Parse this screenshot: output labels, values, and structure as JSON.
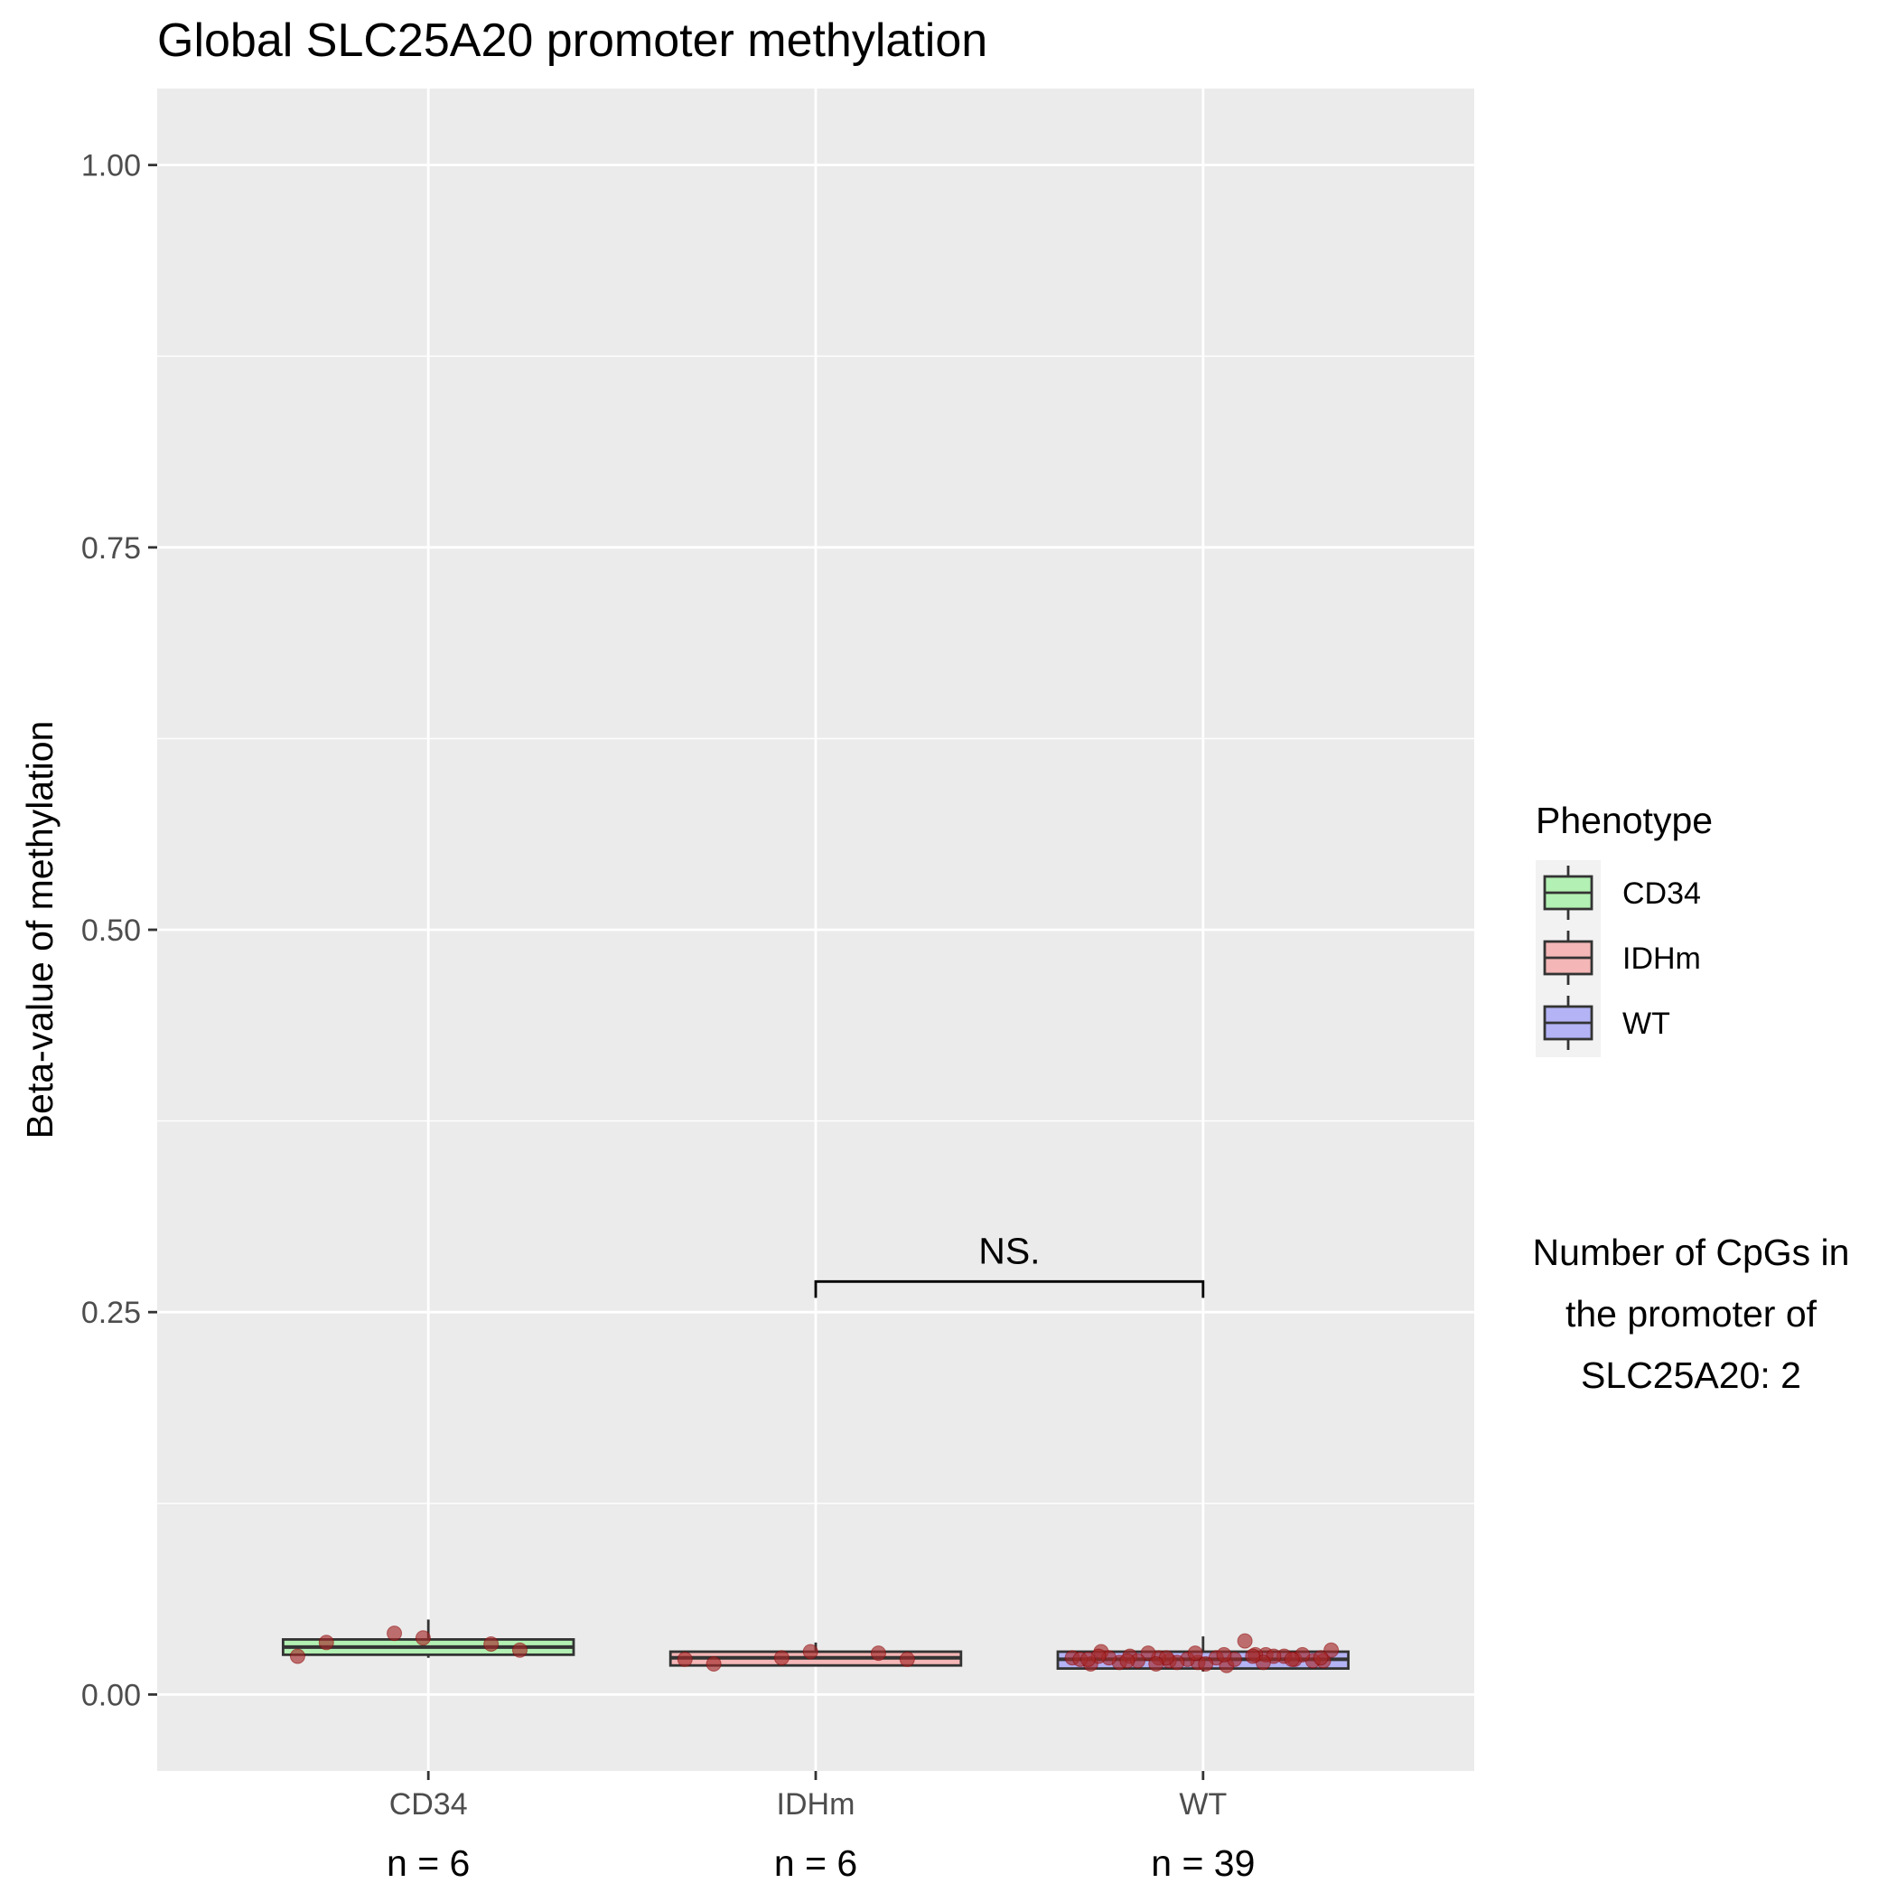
{
  "chart_data": {
    "type": "box",
    "title": "Global SLC25A20 promoter methylation",
    "xlabel": "",
    "ylabel": "Beta-value of methylation",
    "ylim": [
      -0.05,
      1.05
    ],
    "y_ticks": [
      "0.00",
      "0.25",
      "0.50",
      "0.75",
      "1.00"
    ],
    "grid": true,
    "categories": [
      "CD34",
      "IDHm",
      "WT"
    ],
    "counts": [
      "n = 6",
      "n = 6",
      "n = 39"
    ],
    "boxes": [
      {
        "category": "CD34",
        "min": 0.024,
        "q1": 0.026,
        "median": 0.031,
        "q3": 0.036,
        "max": 0.049,
        "fill": "#b3f0b3"
      },
      {
        "category": "IDHm",
        "min": 0.019,
        "q1": 0.019,
        "median": 0.024,
        "q3": 0.028,
        "max": 0.034,
        "fill": "#f4b6b6"
      },
      {
        "category": "WT",
        "min": 0.015,
        "q1": 0.017,
        "median": 0.023,
        "q3": 0.028,
        "max": 0.038,
        "fill": "#b3b3f5"
      }
    ],
    "points": [
      {
        "category": "CD34",
        "values": [
          0.025,
          0.04,
          0.033,
          0.034,
          0.037,
          0.029
        ]
      },
      {
        "category": "IDHm",
        "values": [
          0.023,
          0.024,
          0.027,
          0.02,
          0.028,
          0.023
        ]
      },
      {
        "category": "WT",
        "values": [
          0.024,
          0.022,
          0.026,
          0.028,
          0.021,
          0.023,
          0.025,
          0.019,
          0.022,
          0.024,
          0.026,
          0.02,
          0.023,
          0.025,
          0.021,
          0.024,
          0.022,
          0.027,
          0.035,
          0.023,
          0.021,
          0.025,
          0.024,
          0.02,
          0.026,
          0.022,
          0.023,
          0.029,
          0.024,
          0.021,
          0.025,
          0.027,
          0.023,
          0.022,
          0.026,
          0.024,
          0.02,
          0.025,
          0.023
        ]
      }
    ],
    "point_color": "#a52a2a",
    "significance": {
      "from": "IDHm",
      "to": "WT",
      "y": 0.27,
      "label": "NS."
    },
    "legend": {
      "title": "Phenotype",
      "position": "right",
      "entries": [
        {
          "label": "CD34",
          "fill": "#b3f0b3"
        },
        {
          "label": "IDHm",
          "fill": "#f4b6b6"
        },
        {
          "label": "WT",
          "fill": "#b3b3f5"
        }
      ]
    },
    "annotation_lines": [
      "Number of CpGs in",
      "the promoter of",
      "SLC25A20: 2"
    ]
  }
}
